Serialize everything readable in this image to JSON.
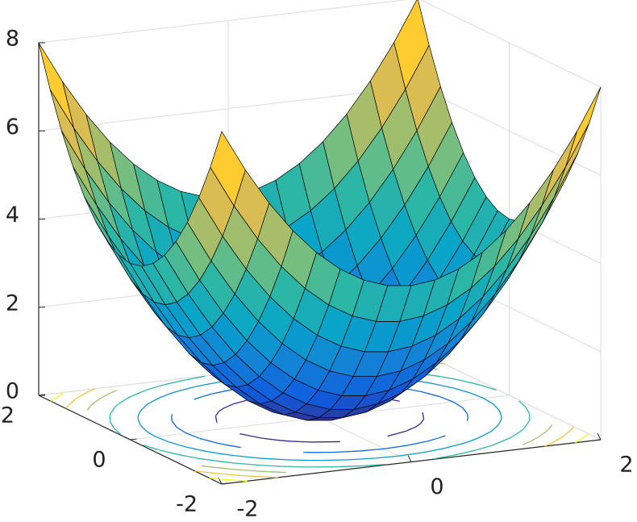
{
  "chart_data": {
    "type": "surface",
    "x": [
      -2,
      -1.75,
      -1.5,
      -1.25,
      -1,
      -0.75,
      -0.5,
      -0.25,
      0,
      0.25,
      0.5,
      0.75,
      1,
      1.25,
      1.5,
      1.75,
      2
    ],
    "y": [
      -2,
      -1.75,
      -1.5,
      -1.25,
      -1,
      -0.75,
      -0.5,
      -0.25,
      0,
      0.25,
      0.5,
      0.75,
      1,
      1.25,
      1.5,
      1.75,
      2
    ],
    "z": [
      [
        8,
        7.0625,
        6.25,
        5.5625,
        5,
        4.5625,
        4.25,
        4.0625,
        4,
        4.0625,
        4.25,
        4.5625,
        5,
        5.5625,
        6.25,
        7.0625,
        8
      ],
      [
        7.0625,
        6.125,
        5.3125,
        4.625,
        4.0625,
        3.625,
        3.3125,
        3.125,
        3.0625,
        3.125,
        3.3125,
        3.625,
        4.0625,
        4.625,
        5.3125,
        6.125,
        7.0625
      ],
      [
        6.25,
        5.3125,
        4.5,
        3.8125,
        3.25,
        2.8125,
        2.5,
        2.3125,
        2.25,
        2.3125,
        2.5,
        2.8125,
        3.25,
        3.8125,
        4.5,
        5.3125,
        6.25
      ],
      [
        5.5625,
        4.625,
        3.8125,
        3.125,
        2.5625,
        2.125,
        1.8125,
        1.625,
        1.5625,
        1.625,
        1.8125,
        2.125,
        2.5625,
        3.125,
        3.8125,
        4.625,
        5.5625
      ],
      [
        5,
        4.0625,
        3.25,
        2.5625,
        2,
        1.5625,
        1.25,
        1.0625,
        1,
        1.0625,
        1.25,
        1.5625,
        2,
        2.5625,
        3.25,
        4.0625,
        5
      ],
      [
        4.5625,
        3.625,
        2.8125,
        2.125,
        1.5625,
        1.125,
        0.8125,
        0.625,
        0.5625,
        0.625,
        0.8125,
        1.125,
        1.5625,
        2.125,
        2.8125,
        3.625,
        4.5625
      ],
      [
        4.25,
        3.3125,
        2.5,
        1.8125,
        1.25,
        0.8125,
        0.5,
        0.3125,
        0.25,
        0.3125,
        0.5,
        0.8125,
        1.25,
        1.8125,
        2.5,
        3.3125,
        4.25
      ],
      [
        4.0625,
        3.125,
        2.3125,
        1.625,
        1.0625,
        0.625,
        0.3125,
        0.125,
        0.0625,
        0.125,
        0.3125,
        0.625,
        1.0625,
        1.625,
        2.3125,
        3.125,
        4.0625
      ],
      [
        4,
        3.0625,
        2.25,
        1.5625,
        1,
        0.5625,
        0.25,
        0.0625,
        0,
        0.0625,
        0.25,
        0.5625,
        1,
        1.5625,
        2.25,
        3.0625,
        4
      ],
      [
        4.0625,
        3.125,
        2.3125,
        1.625,
        1.0625,
        0.625,
        0.3125,
        0.125,
        0.0625,
        0.125,
        0.3125,
        0.625,
        1.0625,
        1.625,
        2.3125,
        3.125,
        4.0625
      ],
      [
        4.25,
        3.3125,
        2.5,
        1.8125,
        1.25,
        0.8125,
        0.5,
        0.3125,
        0.25,
        0.3125,
        0.5,
        0.8125,
        1.25,
        1.8125,
        2.5,
        3.3125,
        4.25
      ],
      [
        4.5625,
        3.625,
        2.8125,
        2.125,
        1.5625,
        1.125,
        0.8125,
        0.625,
        0.5625,
        0.625,
        0.8125,
        1.125,
        1.5625,
        2.125,
        2.8125,
        3.625,
        4.5625
      ],
      [
        5,
        4.0625,
        3.25,
        2.5625,
        2,
        1.5625,
        1.25,
        1.0625,
        1,
        1.0625,
        1.25,
        1.5625,
        2,
        2.5625,
        3.25,
        4.0625,
        5
      ],
      [
        5.5625,
        4.625,
        3.8125,
        3.125,
        2.5625,
        2.125,
        1.8125,
        1.625,
        1.5625,
        1.625,
        1.8125,
        2.125,
        2.5625,
        3.125,
        3.8125,
        4.625,
        5.5625
      ],
      [
        6.25,
        5.3125,
        4.5,
        3.8125,
        3.25,
        2.8125,
        2.5,
        2.3125,
        2.25,
        2.3125,
        2.5,
        2.8125,
        3.25,
        3.8125,
        4.5,
        5.3125,
        6.25
      ],
      [
        7.0625,
        6.125,
        5.3125,
        4.625,
        4.0625,
        3.625,
        3.3125,
        3.125,
        3.0625,
        3.125,
        3.3125,
        3.625,
        4.0625,
        4.625,
        5.3125,
        6.125,
        7.0625
      ],
      [
        8,
        7.0625,
        6.25,
        5.5625,
        5,
        4.5625,
        4.25,
        4.0625,
        4,
        4.0625,
        4.25,
        4.5625,
        5,
        5.5625,
        6.25,
        7.0625,
        8
      ]
    ],
    "contour_levels": [
      1,
      2,
      3,
      4,
      5,
      6,
      7
    ],
    "colormap": [
      "#352a87",
      "#0f5cdd",
      "#1481d6",
      "#06a4ca",
      "#2eb7a4",
      "#87bf77",
      "#d1bb59",
      "#fec832",
      "#f9fb0e"
    ],
    "xlim": [
      -2,
      2
    ],
    "ylim": [
      -2,
      2
    ],
    "zlim": [
      0,
      8
    ],
    "xticks": [
      -2,
      0,
      2
    ],
    "yticks": [
      -2,
      0,
      2
    ],
    "zticks": [
      0,
      2,
      4,
      6,
      8
    ],
    "grid": true
  }
}
